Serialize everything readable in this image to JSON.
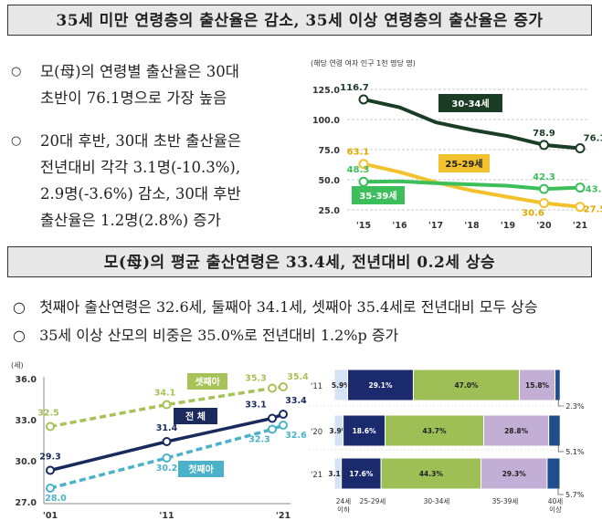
{
  "headers": {
    "top": "35세 미만 연령층의 출산율은 감소, 35세 이상 연령층의 출산율은 증가",
    "middle": "모(母)의 평균 출산연령은 33.4세, 전년대비 0.2세 상승"
  },
  "bullets_top": [
    {
      "line1": "모(母)의 연령별 출산율은 30대",
      "line2": "초반이 76.1명으로 가장 높음"
    },
    {
      "line1": "20대 후반, 30대 초반 출산율은",
      "line2": "전년대비 각각 3.1명(-10.3%),",
      "line3": "2.9명(-3.6%) 감소, 30대 후반",
      "line4": "출산율은 1.2명(2.8%) 증가"
    }
  ],
  "bullets_mid": [
    "첫째아 출산연령은 32.6세, 둘째아 34.1세, 셋째아 35.4세로 전년대비 모두 상승",
    "35세 이상 산모의 비중은 35.0%로 전년대비 1.2%p 증가"
  ],
  "bullet_marker": "○",
  "chart_data": [
    {
      "type": "line",
      "title": "(해당 연령 여자 인구 1천 명당 명)",
      "categories": [
        "'15",
        "'16",
        "'17",
        "'18",
        "'19",
        "'20",
        "'21"
      ],
      "ylim": [
        25,
        125
      ],
      "yticks": [
        "125.0",
        "100.0",
        "75.0",
        "50.0",
        "25.0"
      ],
      "series": [
        {
          "name": "30-34세",
          "color": "#1b3d26",
          "values": [
            116.7,
            110.1,
            97.7,
            91.4,
            86.2,
            78.9,
            76.1
          ],
          "labels": {
            "0": "116.7",
            "5": "78.9",
            "6": "76.1"
          }
        },
        {
          "name": "25-29세",
          "color": "#f2c12e",
          "values": [
            63.1,
            56.4,
            47.9,
            41.0,
            35.7,
            30.6,
            27.5
          ],
          "labels": {
            "0": "63.1",
            "5": "30.6",
            "6": "27.5"
          }
        },
        {
          "name": "35-39세",
          "color": "#3cbf5a",
          "values": [
            48.3,
            48.7,
            47.2,
            46.1,
            45.0,
            42.3,
            43.5
          ],
          "labels": {
            "0": "48.3",
            "5": "42.3",
            "6": "43.5"
          }
        }
      ]
    },
    {
      "type": "line",
      "unit_label": "(세)",
      "categories": [
        "'01",
        "'11",
        "'21"
      ],
      "ylim": [
        27,
        36
      ],
      "yticks": [
        "36.0",
        "33.0",
        "30.0",
        "27.0"
      ],
      "series": [
        {
          "name": "셋째아",
          "color": "#a7c256",
          "values": [
            32.5,
            34.1,
            35.4
          ],
          "extra_point": {
            "label": "35.3",
            "value": 35.3
          },
          "labels": [
            "32.5",
            "34.1",
            "35.4"
          ]
        },
        {
          "name": "전 체",
          "color": "#1a2a5c",
          "values": [
            29.3,
            31.4,
            33.4
          ],
          "extra_point": {
            "label": "33.1",
            "value": 33.1
          },
          "labels": [
            "29.3",
            "31.4",
            "33.4"
          ]
        },
        {
          "name": "첫째아",
          "color": "#4bb3c9",
          "values": [
            28.0,
            30.2,
            32.6
          ],
          "extra_point": {
            "label": "32.3",
            "value": 32.3
          },
          "labels": [
            "28.0",
            "30.2",
            "32.6"
          ]
        }
      ]
    },
    {
      "type": "bar",
      "stacked": true,
      "orientation": "horizontal",
      "categories": [
        "'11",
        "'20",
        "'21"
      ],
      "series": [
        {
          "name": "24세 이하",
          "color": "#d6e2f5",
          "values": [
            5.9,
            3.9,
            3.1
          ],
          "labels": [
            "5.9%",
            "3.9%",
            "3.1%"
          ]
        },
        {
          "name": "25-29세",
          "color": "#1a2a6c",
          "values": [
            29.1,
            18.6,
            17.6
          ],
          "labels": [
            "29.1%",
            "18.6%",
            "17.6%"
          ]
        },
        {
          "name": "30-34세",
          "color": "#9dbf55",
          "values": [
            47.0,
            43.7,
            44.3
          ],
          "labels": [
            "47.0%",
            "43.7%",
            "44.3%"
          ]
        },
        {
          "name": "35-39세",
          "color": "#c3aed6",
          "values": [
            15.8,
            28.8,
            29.3
          ],
          "labels": [
            "15.8%",
            "28.8%",
            "29.3%"
          ]
        },
        {
          "name": "40세 이상",
          "color": "#1f4e8c",
          "values": [
            2.3,
            5.1,
            5.7
          ],
          "labels": [
            "2.3%",
            "5.1%",
            "5.7%"
          ]
        }
      ],
      "axis_labels": [
        "24세 이하",
        "25-29세",
        "30-34세",
        "35-39세",
        "40세 이상"
      ]
    }
  ]
}
